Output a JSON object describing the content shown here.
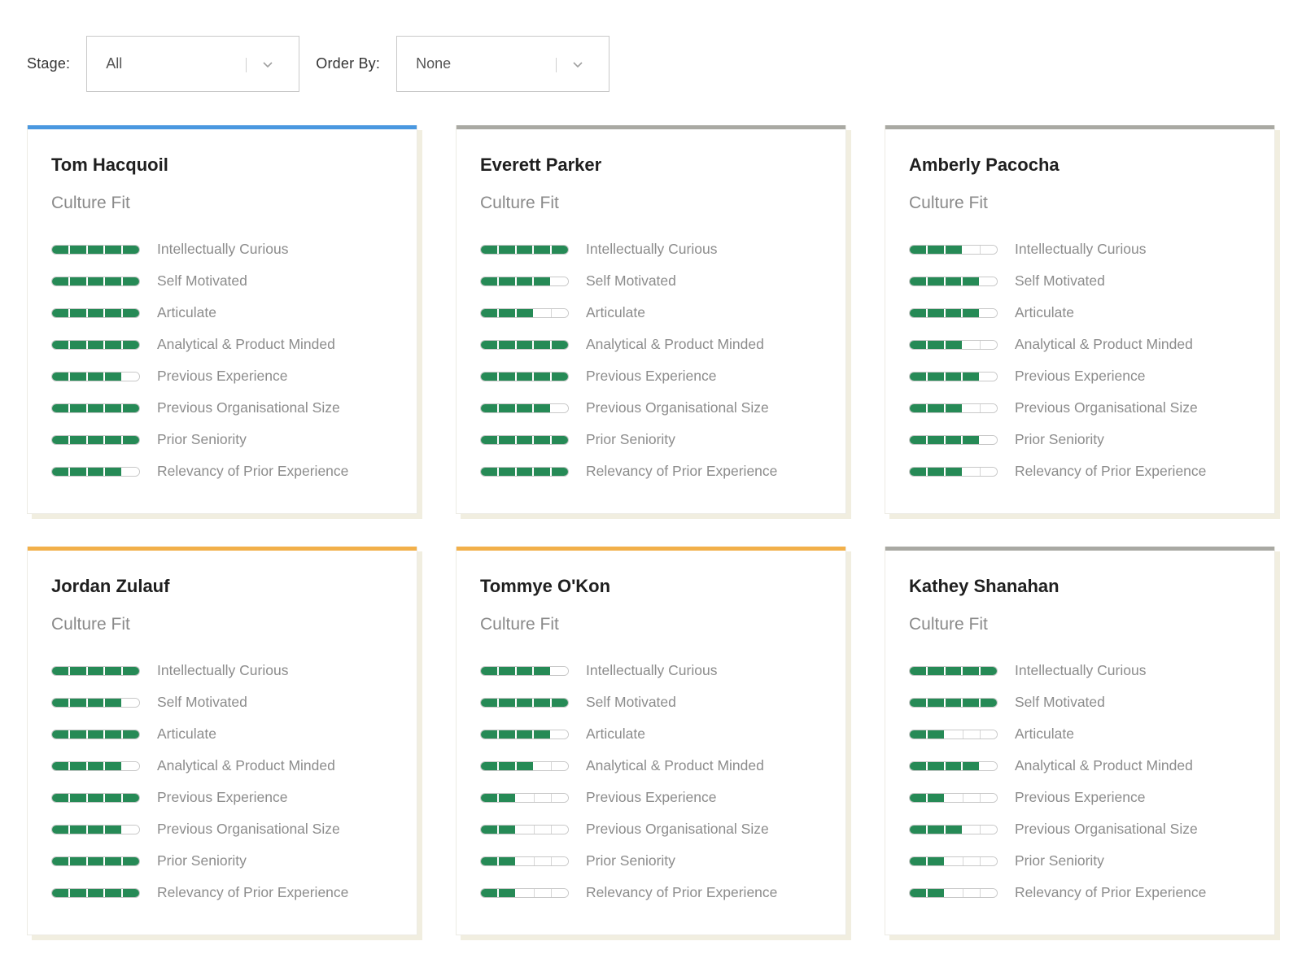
{
  "filters": {
    "stage": {
      "label": "Stage:",
      "value": "All"
    },
    "order_by": {
      "label": "Order By:",
      "value": "None"
    }
  },
  "colors": {
    "blue": "#4a98e0",
    "gray": "#a9a9a3",
    "orange": "#f2b04a",
    "meter_fill": "#268a56"
  },
  "max_score": 5,
  "cards": [
    {
      "name": "Tom Hacquoil",
      "accent": "#4a98e0",
      "section": "Culture Fit",
      "traits": [
        {
          "label": "Intellectually Curious",
          "score": 5
        },
        {
          "label": "Self Motivated",
          "score": 5
        },
        {
          "label": "Articulate",
          "score": 5
        },
        {
          "label": "Analytical & Product Minded",
          "score": 5
        },
        {
          "label": "Previous Experience",
          "score": 4
        },
        {
          "label": "Previous Organisational Size",
          "score": 5
        },
        {
          "label": "Prior Seniority",
          "score": 5
        },
        {
          "label": "Relevancy of Prior Experience",
          "score": 4
        }
      ]
    },
    {
      "name": "Everett Parker",
      "accent": "#a9a9a3",
      "section": "Culture Fit",
      "traits": [
        {
          "label": "Intellectually Curious",
          "score": 5
        },
        {
          "label": "Self Motivated",
          "score": 4
        },
        {
          "label": "Articulate",
          "score": 3
        },
        {
          "label": "Analytical & Product Minded",
          "score": 5
        },
        {
          "label": "Previous Experience",
          "score": 5
        },
        {
          "label": "Previous Organisational Size",
          "score": 4
        },
        {
          "label": "Prior Seniority",
          "score": 5
        },
        {
          "label": "Relevancy of Prior Experience",
          "score": 5
        }
      ]
    },
    {
      "name": "Amberly Pacocha",
      "accent": "#a9a9a3",
      "section": "Culture Fit",
      "traits": [
        {
          "label": "Intellectually Curious",
          "score": 3
        },
        {
          "label": "Self Motivated",
          "score": 4
        },
        {
          "label": "Articulate",
          "score": 4
        },
        {
          "label": "Analytical & Product Minded",
          "score": 3
        },
        {
          "label": "Previous Experience",
          "score": 4
        },
        {
          "label": "Previous Organisational Size",
          "score": 3
        },
        {
          "label": "Prior Seniority",
          "score": 4
        },
        {
          "label": "Relevancy of Prior Experience",
          "score": 3
        }
      ]
    },
    {
      "name": "Jordan Zulauf",
      "accent": "#f2b04a",
      "section": "Culture Fit",
      "traits": [
        {
          "label": "Intellectually Curious",
          "score": 5
        },
        {
          "label": "Self Motivated",
          "score": 4
        },
        {
          "label": "Articulate",
          "score": 5
        },
        {
          "label": "Analytical & Product Minded",
          "score": 4
        },
        {
          "label": "Previous Experience",
          "score": 5
        },
        {
          "label": "Previous Organisational Size",
          "score": 4
        },
        {
          "label": "Prior Seniority",
          "score": 5
        },
        {
          "label": "Relevancy of Prior Experience",
          "score": 5
        }
      ]
    },
    {
      "name": "Tommye O'Kon",
      "accent": "#f2b04a",
      "section": "Culture Fit",
      "traits": [
        {
          "label": "Intellectually Curious",
          "score": 4
        },
        {
          "label": "Self Motivated",
          "score": 5
        },
        {
          "label": "Articulate",
          "score": 4
        },
        {
          "label": "Analytical & Product Minded",
          "score": 3
        },
        {
          "label": "Previous Experience",
          "score": 2
        },
        {
          "label": "Previous Organisational Size",
          "score": 2
        },
        {
          "label": "Prior Seniority",
          "score": 2
        },
        {
          "label": "Relevancy of Prior Experience",
          "score": 2
        }
      ]
    },
    {
      "name": "Kathey Shanahan",
      "accent": "#a9a9a3",
      "section": "Culture Fit",
      "traits": [
        {
          "label": "Intellectually Curious",
          "score": 5
        },
        {
          "label": "Self Motivated",
          "score": 5
        },
        {
          "label": "Articulate",
          "score": 2
        },
        {
          "label": "Analytical & Product Minded",
          "score": 4
        },
        {
          "label": "Previous Experience",
          "score": 2
        },
        {
          "label": "Previous Organisational Size",
          "score": 3
        },
        {
          "label": "Prior Seniority",
          "score": 2
        },
        {
          "label": "Relevancy of Prior Experience",
          "score": 2
        }
      ]
    }
  ]
}
